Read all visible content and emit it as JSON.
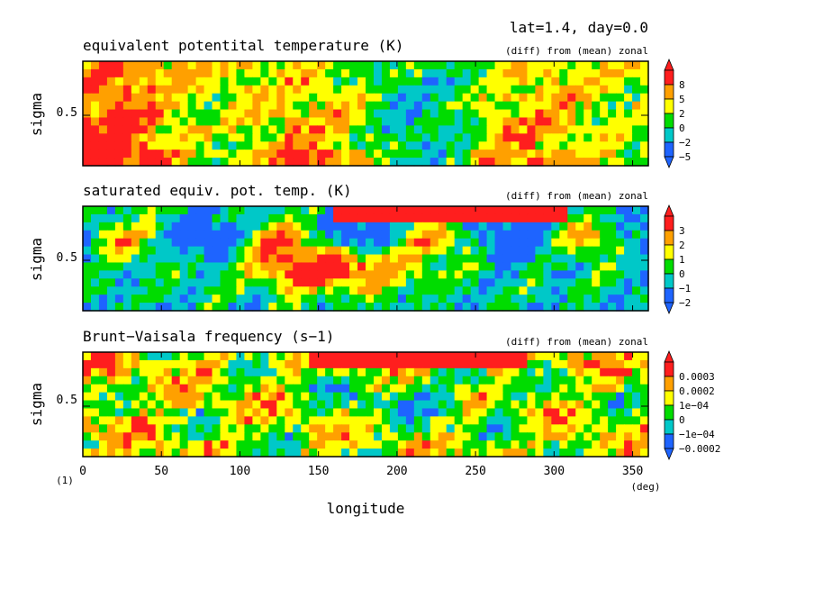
{
  "header": {
    "title": "lat=1.4, day=0.0"
  },
  "xaxis": {
    "label": "longitude",
    "unit": "(deg)",
    "ticks": [
      0,
      50,
      100,
      150,
      200,
      250,
      300,
      350
    ],
    "range": [
      0,
      360
    ],
    "corner_label": "(1)"
  },
  "chart_data": [
    {
      "type": "heatmap",
      "title": "equivalent potentital temperature (K)",
      "note": "(diff) from (mean) zonal",
      "ylabel": "sigma",
      "ytick": "0.5",
      "colorbar": {
        "labels": [
          "8",
          "5",
          "2",
          "0",
          "−2",
          "−5"
        ]
      }
    },
    {
      "type": "heatmap",
      "title": "saturated equiv. pot. temp. (K)",
      "note": "(diff) from (mean) zonal",
      "ylabel": "sigma",
      "ytick": "0.5",
      "colorbar": {
        "labels": [
          "3",
          "2",
          "1",
          "0",
          "−1",
          "−2"
        ]
      }
    },
    {
      "type": "heatmap",
      "title": "Brunt−Vaisala frequency (s−1)",
      "note": "(diff) from (mean) zonal",
      "ylabel": "sigma",
      "ytick": "0.5",
      "colorbar": {
        "labels": [
          "0.0003",
          "0.0002",
          "1e−04",
          "0",
          "−1e−04",
          "−0.0002"
        ]
      }
    }
  ],
  "colors": {
    "levels": [
      "#1e64ff",
      "#00c8c8",
      "#00dc00",
      "#ffff00",
      "#ffa000",
      "#ff1e1e"
    ]
  }
}
